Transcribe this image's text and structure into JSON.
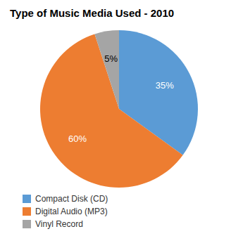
{
  "chart_data": {
    "type": "pie",
    "title": "Type of Music Media Used - 2010",
    "categories": [
      "Compact Disk (CD)",
      "Digital Audio (MP3)",
      "Vinyl Record"
    ],
    "values": [
      35,
      60,
      5
    ],
    "value_labels": [
      "35%",
      "60%",
      "5%"
    ],
    "colors": [
      "#5b9bd5",
      "#ed7d31",
      "#a5a5a5"
    ],
    "data_labels": true,
    "legend": "bottom"
  }
}
